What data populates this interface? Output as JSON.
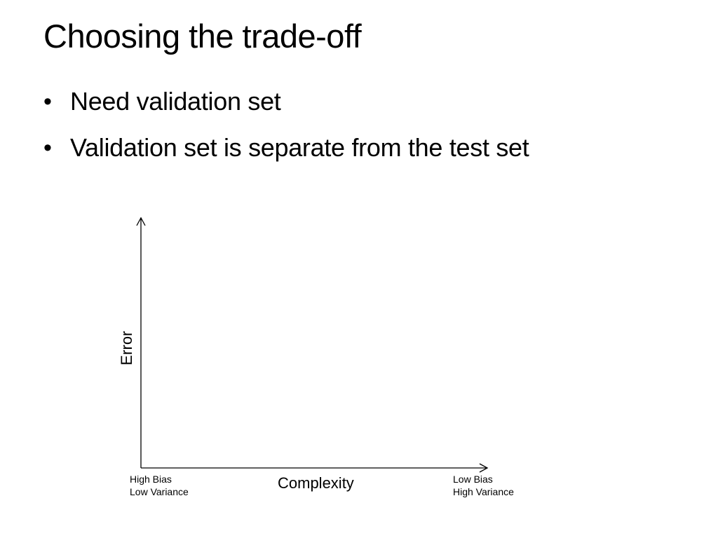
{
  "slide": {
    "title": "Choosing the trade-off",
    "bullet_symbol": "•",
    "bullets": [
      "Need validation set",
      "Validation set is separate from the test set"
    ]
  },
  "diagram": {
    "y_axis_label": "Error",
    "x_axis_label": "Complexity",
    "x_left_end": [
      "High Bias",
      "Low Variance"
    ],
    "x_right_end": [
      "Low Bias",
      "High Variance"
    ],
    "line_color": "#000000"
  }
}
